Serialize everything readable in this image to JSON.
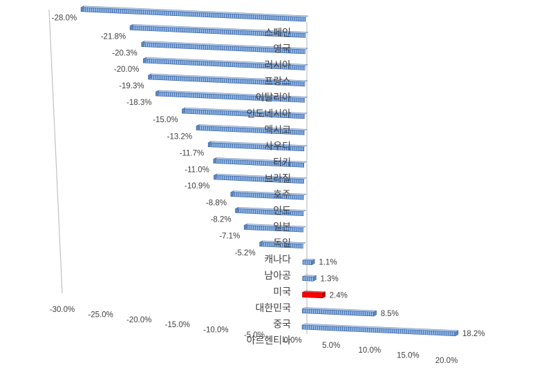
{
  "chart_data": {
    "type": "bar",
    "orientation": "horizontal",
    "view": "3d-perspective",
    "categories": [
      "스페인",
      "영국",
      "러시아",
      "프랑스",
      "이탈리아",
      "인도네시아",
      "멕시코",
      "사우디",
      "터키",
      "브라질",
      "호주",
      "인도",
      "일본",
      "독일",
      "캐나다",
      "남아공",
      "미국",
      "대한민국",
      "중국",
      "아르헨티나"
    ],
    "values": [
      -28.0,
      -21.8,
      -20.3,
      -20.0,
      -19.3,
      -18.3,
      -15.0,
      -13.2,
      -11.7,
      -11.0,
      -10.9,
      -8.8,
      -8.2,
      -7.1,
      -5.2,
      1.1,
      1.3,
      2.4,
      8.5,
      18.2
    ],
    "value_labels": [
      "-28.0%",
      "-21.8%",
      "-20.3%",
      "-20.0%",
      "-19.3%",
      "-18.3%",
      "-15.0%",
      "-13.2%",
      "-11.7%",
      "-11.0%",
      "-10.9%",
      "-8.8%",
      "-8.2%",
      "-7.1%",
      "-5.2%",
      "1.1%",
      "1.3%",
      "2.4%",
      "8.5%",
      "18.2%"
    ],
    "highlight_category": "대한민국",
    "xlim": [
      -30,
      20
    ],
    "tick_labels": [
      "-30.0%",
      "-25.0%",
      "-20.0%",
      "-15.0%",
      "-10.0%",
      "-5.0%",
      "0.0%",
      "5.0%",
      "10.0%",
      "15.0%",
      "20.0%"
    ],
    "title": "",
    "xlabel": "",
    "ylabel": "",
    "legend": "none",
    "grid": false,
    "colors": {
      "bar": "#8fb4e3",
      "bar_stripe": "#4a78b8",
      "bar_edge": "#3a5f96",
      "highlight": "#ff0000",
      "highlight_edge": "#a00000",
      "axis": "#c0c0c0",
      "text": "#404040"
    }
  }
}
